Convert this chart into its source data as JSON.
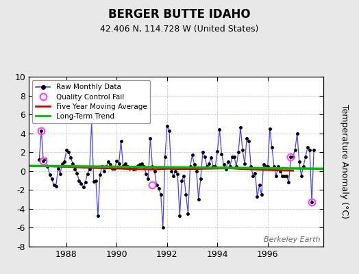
{
  "title": "BERGER BUTTE IDAHO",
  "subtitle": "42.406 N, 114.728 W (United States)",
  "ylabel": "Temperature Anomaly (°C)",
  "watermark": "Berkeley Earth",
  "ylim": [
    -8,
    10
  ],
  "yticks": [
    -8,
    -6,
    -4,
    -2,
    0,
    2,
    4,
    6,
    8,
    10
  ],
  "xlim_start": 1986.5,
  "xlim_end": 1998.2,
  "xticks": [
    1988,
    1990,
    1992,
    1994,
    1996
  ],
  "outer_background": "#e8e8e8",
  "plot_background": "#ffffff",
  "raw_monthly_x": [
    1986.917,
    1987.0,
    1987.083,
    1987.167,
    1987.25,
    1987.333,
    1987.417,
    1987.5,
    1987.583,
    1987.667,
    1987.75,
    1987.833,
    1987.917,
    1988.0,
    1988.083,
    1988.167,
    1988.25,
    1988.333,
    1988.417,
    1988.5,
    1988.583,
    1988.667,
    1988.75,
    1988.833,
    1988.917,
    1989.0,
    1989.083,
    1989.167,
    1989.25,
    1989.333,
    1989.417,
    1989.5,
    1989.583,
    1989.667,
    1989.75,
    1989.833,
    1989.917,
    1990.0,
    1990.083,
    1990.167,
    1990.25,
    1990.333,
    1990.417,
    1990.5,
    1990.583,
    1990.667,
    1990.75,
    1990.833,
    1990.917,
    1991.0,
    1991.083,
    1991.167,
    1991.25,
    1991.333,
    1991.417,
    1991.5,
    1991.583,
    1991.667,
    1991.75,
    1991.833,
    1991.917,
    1992.0,
    1992.083,
    1992.167,
    1992.25,
    1992.333,
    1992.417,
    1992.5,
    1992.583,
    1992.667,
    1992.75,
    1992.833,
    1992.917,
    1993.0,
    1993.083,
    1993.167,
    1993.25,
    1993.333,
    1993.417,
    1993.5,
    1993.583,
    1993.667,
    1993.75,
    1993.833,
    1993.917,
    1994.0,
    1994.083,
    1994.167,
    1994.25,
    1994.333,
    1994.417,
    1994.5,
    1994.583,
    1994.667,
    1994.75,
    1994.833,
    1994.917,
    1995.0,
    1995.083,
    1995.167,
    1995.25,
    1995.333,
    1995.417,
    1995.5,
    1995.583,
    1995.667,
    1995.75,
    1995.833,
    1995.917,
    1996.0,
    1996.083,
    1996.167,
    1996.25,
    1996.333,
    1996.417,
    1996.5,
    1996.583,
    1996.667,
    1996.75,
    1996.833,
    1996.917,
    1997.0,
    1997.083,
    1997.167,
    1997.25,
    1997.333,
    1997.417,
    1997.5,
    1997.583,
    1997.667,
    1997.75,
    1997.833
  ],
  "raw_monthly_y": [
    1.2,
    4.3,
    1.1,
    1.3,
    0.5,
    -0.4,
    -0.8,
    -1.5,
    -1.6,
    0.3,
    -0.3,
    0.8,
    1.0,
    2.2,
    2.0,
    1.4,
    0.8,
    0.2,
    -0.2,
    -1.0,
    -1.3,
    -1.7,
    -1.2,
    -0.3,
    0.2,
    5.2,
    -1.1,
    -1.0,
    -4.7,
    -0.4,
    0.5,
    0.0,
    0.5,
    1.0,
    0.7,
    0.3,
    0.3,
    1.1,
    0.8,
    3.2,
    0.6,
    0.8,
    0.5,
    0.3,
    0.4,
    0.2,
    0.3,
    0.6,
    0.7,
    0.8,
    0.5,
    -0.3,
    -0.8,
    3.5,
    0.5,
    0.0,
    -1.5,
    -1.8,
    -2.5,
    -6.0,
    1.5,
    4.8,
    4.3,
    0.0,
    -0.5,
    0.0,
    -0.3,
    -4.7,
    -1.0,
    -0.5,
    -2.5,
    -4.5,
    0.5,
    1.7,
    0.7,
    0.0,
    -3.0,
    -0.8,
    2.0,
    1.5,
    0.5,
    0.8,
    1.4,
    0.5,
    0.5,
    2.1,
    4.4,
    1.8,
    0.7,
    0.2,
    1.0,
    0.5,
    1.5,
    1.5,
    0.5,
    2.0,
    4.6,
    2.2,
    0.8,
    3.5,
    3.2,
    0.5,
    -0.5,
    -0.2,
    -2.7,
    -1.5,
    -2.5,
    0.7,
    0.5,
    0.5,
    4.5,
    2.5,
    0.5,
    -0.5,
    0.5,
    0.0,
    -0.5,
    -0.5,
    -0.5,
    -1.2,
    1.5,
    1.5,
    2.2,
    4.0,
    1.0,
    -0.5,
    0.5,
    1.5,
    2.5,
    2.2,
    -3.3,
    2.2
  ],
  "qc_fail_x": [
    1987.0,
    1987.083,
    1991.417,
    1996.917,
    1997.75
  ],
  "qc_fail_y": [
    4.3,
    1.1,
    -1.5,
    1.5,
    -3.3
  ],
  "moving_avg_x": [
    1987.5,
    1988.0,
    1988.5,
    1989.0,
    1989.5,
    1990.0,
    1990.5,
    1991.0,
    1991.5,
    1992.0,
    1992.5,
    1993.0,
    1993.5,
    1994.0,
    1994.5,
    1995.0,
    1995.5,
    1996.0,
    1996.5,
    1997.0
  ],
  "moving_avg_y": [
    0.5,
    0.45,
    0.4,
    0.35,
    0.3,
    0.28,
    0.22,
    0.2,
    0.18,
    0.25,
    0.22,
    0.22,
    0.25,
    0.28,
    0.3,
    0.22,
    0.18,
    0.12,
    0.08,
    0.05
  ],
  "trend_x": [
    1986.5,
    1998.2
  ],
  "trend_y": [
    0.55,
    0.25
  ],
  "colors": {
    "raw_line": "#4444ff",
    "raw_dot": "#000000",
    "qc": "#ff44ff",
    "moving_avg": "#cc0000",
    "trend": "#00bb00",
    "outer_bg": "#e8e8e8",
    "plot_bg": "#ffffff",
    "grid": "#cccccc"
  },
  "legend_labels": [
    "Raw Monthly Data",
    "Quality Control Fail",
    "Five Year Moving Average",
    "Long-Term Trend"
  ]
}
